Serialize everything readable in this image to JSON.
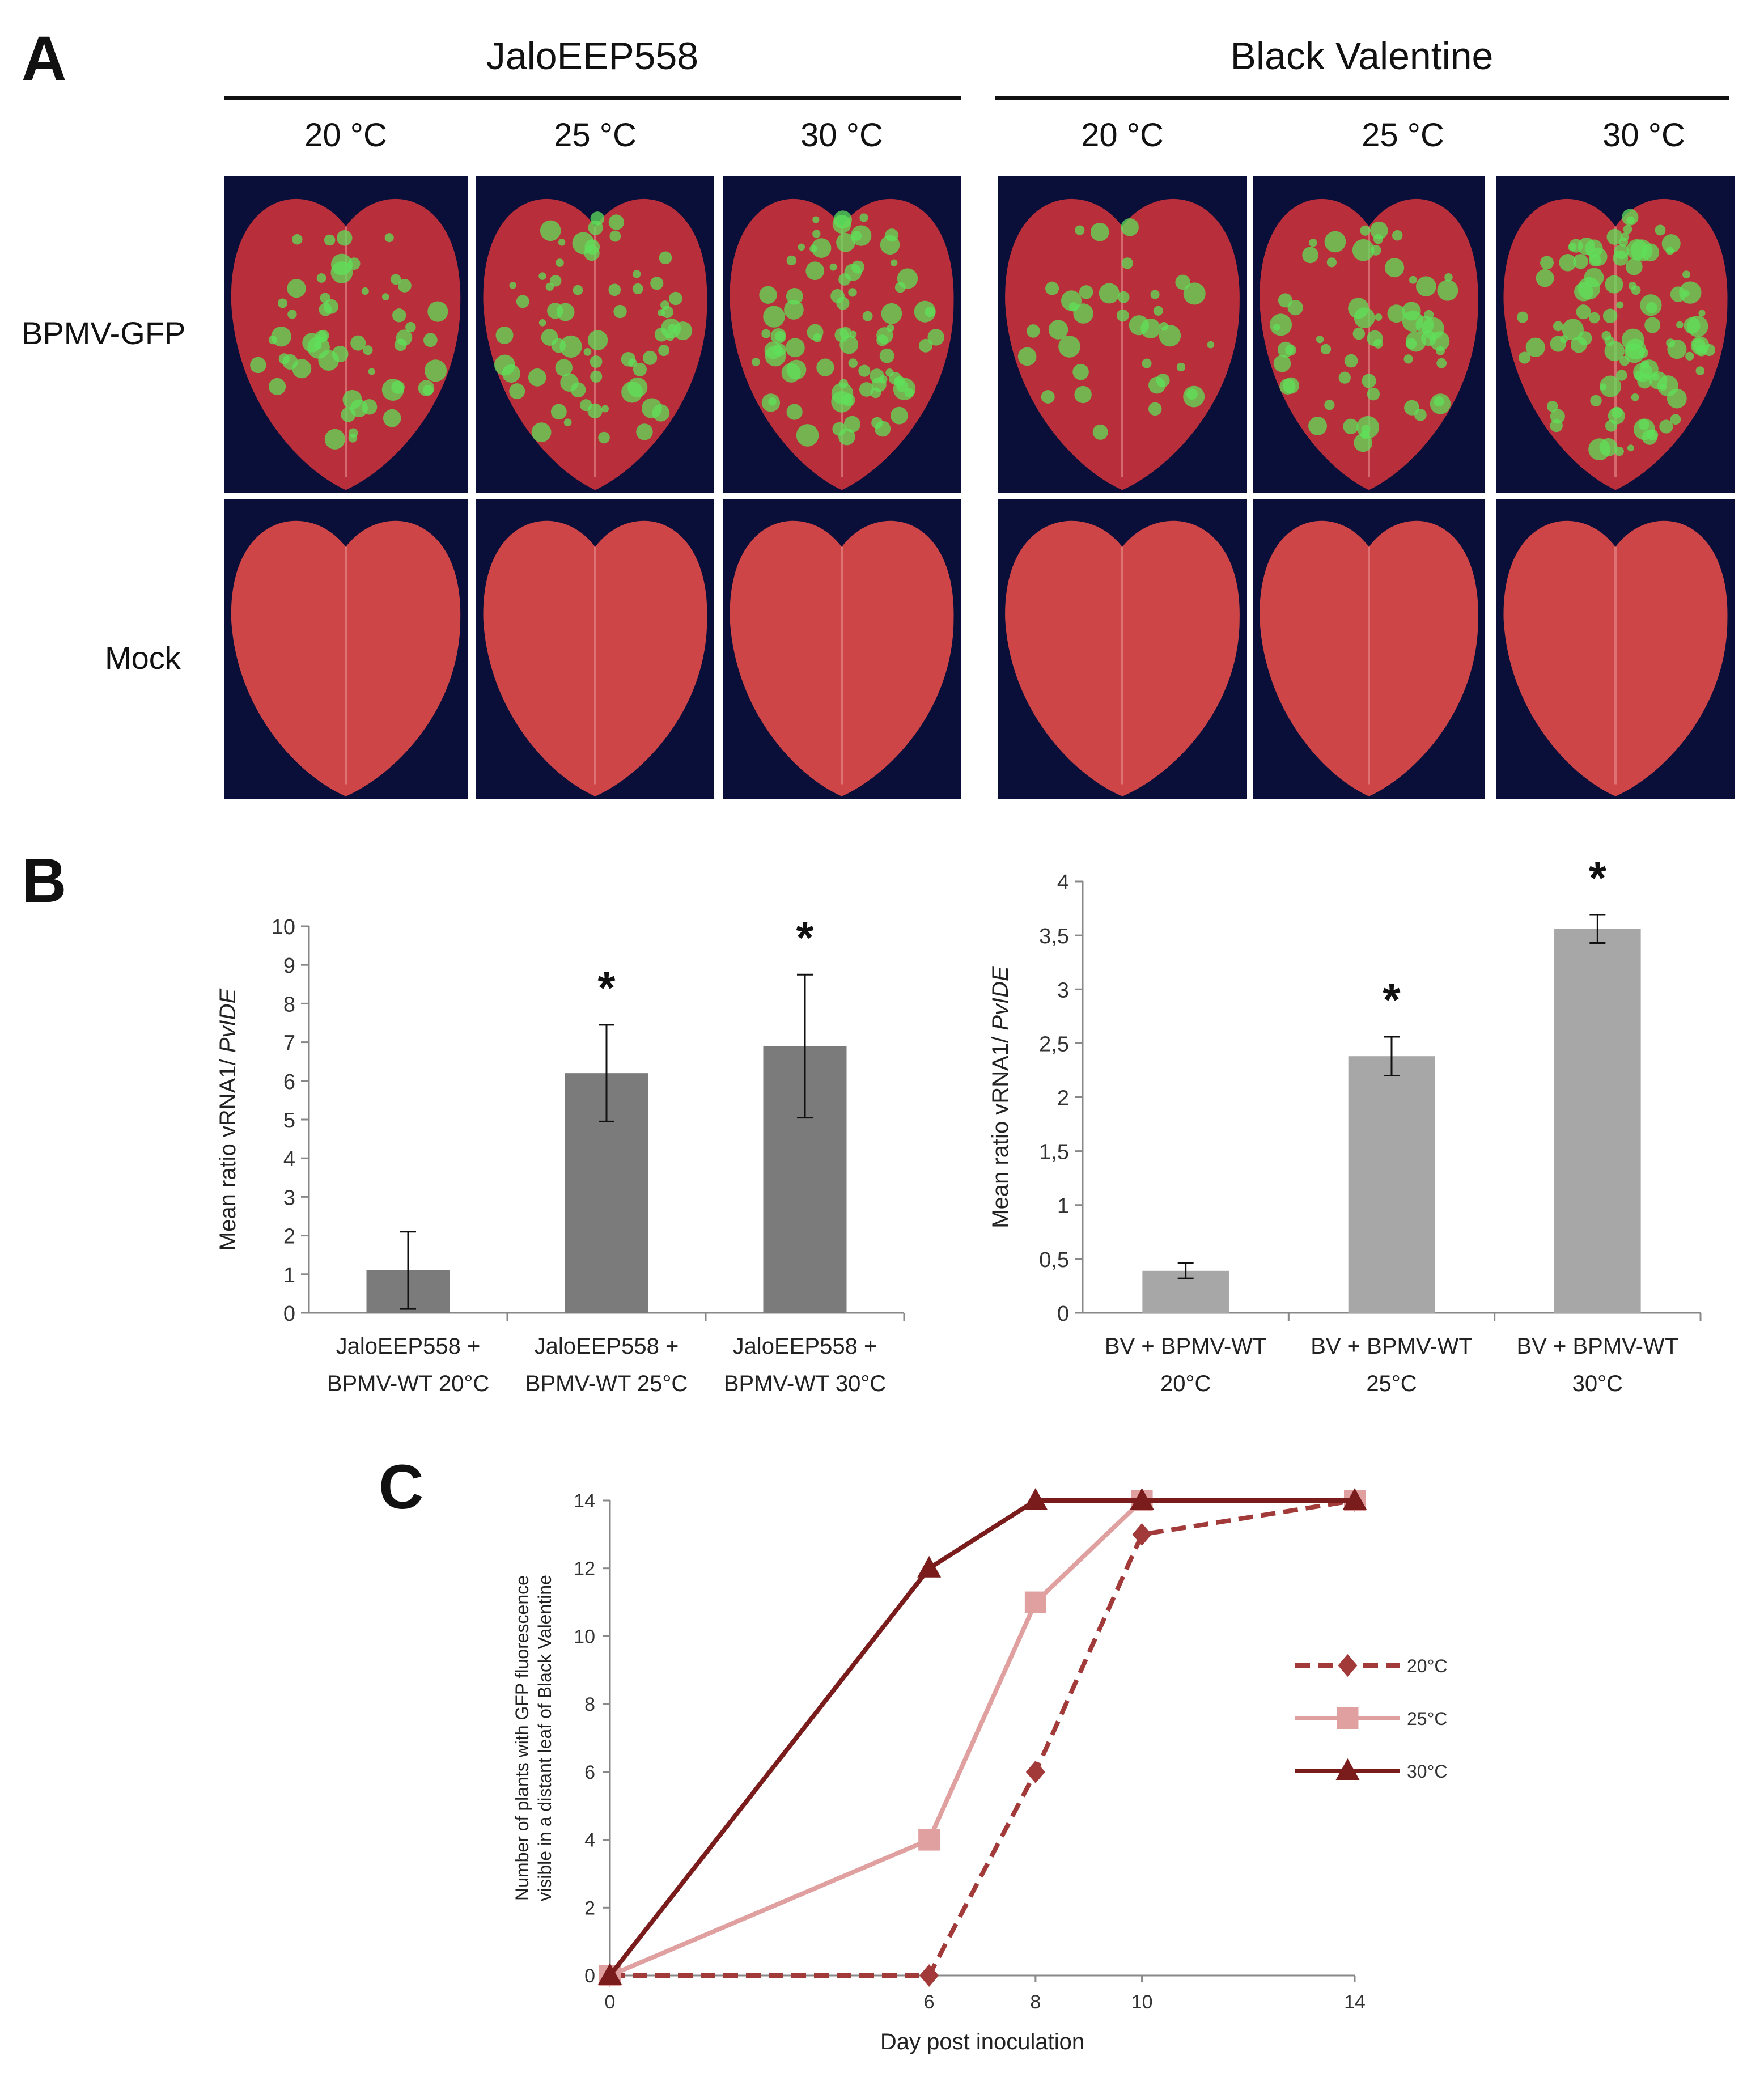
{
  "panel_a": {
    "letter": "A",
    "groups": [
      {
        "title": "JaloEEP558",
        "temps": [
          "20 °C",
          "25 °C",
          "30 °C"
        ]
      },
      {
        "title": "Black Valentine",
        "temps": [
          "20 °C",
          "25 °C",
          "30 °C"
        ]
      }
    ],
    "row_labels": {
      "infected": "BPMV-GFP",
      "mock": "Mock"
    },
    "colors": {
      "background": "#0a0f3a",
      "leaf_red": "#c8323c",
      "gfp_green": "#5fe05a",
      "mock_red": "#e04a4a"
    }
  },
  "panel_b": {
    "letter": "B"
  },
  "panel_c": {
    "letter": "C"
  },
  "chart_data": [
    {
      "type": "bar",
      "panel": "B-left",
      "categories": [
        [
          "JaloEEP558 +",
          "BPMV-WT 20°C"
        ],
        [
          "JaloEEP558 +",
          "BPMV-WT 25°C"
        ],
        [
          "JaloEEP558 +",
          "BPMV-WT 30°C"
        ]
      ],
      "values": [
        1.1,
        6.2,
        6.9
      ],
      "errors": [
        1.0,
        1.25,
        1.85
      ],
      "significance": [
        "",
        "*",
        "*"
      ],
      "ylabel": "Mean ratio vRNA1/ PvIDE",
      "ylim": [
        0,
        10
      ],
      "yticks": [
        "0",
        "1",
        "2",
        "3",
        "4",
        "5",
        "6",
        "7",
        "8",
        "9",
        "10"
      ],
      "bar_color": "#7b7b7b"
    },
    {
      "type": "bar",
      "panel": "B-right",
      "categories": [
        [
          "BV + BPMV-WT",
          "20°C"
        ],
        [
          "BV + BPMV-WT",
          "25°C"
        ],
        [
          "BV + BPMV-WT",
          "30°C"
        ]
      ],
      "values": [
        0.39,
        2.38,
        3.56
      ],
      "errors": [
        0.07,
        0.18,
        0.13
      ],
      "significance": [
        "",
        "*",
        "*"
      ],
      "ylabel": "Mean ratio vRNA1/ PvIDE",
      "ylim": [
        0,
        4
      ],
      "yticks": [
        "0",
        "0,5",
        "1",
        "1,5",
        "2",
        "2,5",
        "3",
        "3,5",
        "4"
      ],
      "bar_color": "#a7a7a7"
    },
    {
      "type": "line",
      "panel": "C",
      "x": [
        0,
        6,
        8,
        10,
        14
      ],
      "xticks": [
        "0",
        "6",
        "8",
        "10",
        "14"
      ],
      "series": [
        {
          "name": "20°C",
          "values": [
            0,
            0,
            6,
            13,
            14
          ],
          "color": "#a23a3a",
          "dashed": true,
          "marker": "diamond"
        },
        {
          "name": "25°C",
          "values": [
            0,
            4,
            11,
            14,
            14
          ],
          "color": "#e0a0a0",
          "dashed": false,
          "marker": "square"
        },
        {
          "name": "30°C",
          "values": [
            0,
            12,
            14,
            14,
            14
          ],
          "color": "#7a1c1c",
          "dashed": false,
          "marker": "triangle"
        }
      ],
      "xlabel": "Day post inoculation",
      "ylabel": [
        "Number of plants with GFP fluorescence",
        "visible in a distant leaf of Black Valentine"
      ],
      "ylim": [
        0,
        14
      ],
      "yticks": [
        "0",
        "2",
        "4",
        "6",
        "8",
        "10",
        "12",
        "14"
      ],
      "legend": "right"
    }
  ]
}
